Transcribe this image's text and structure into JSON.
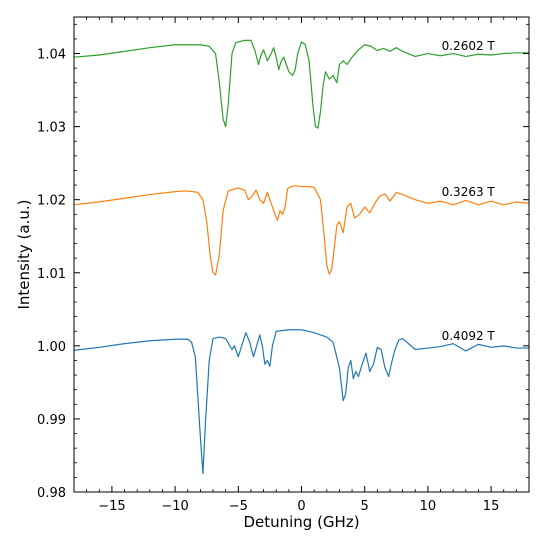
{
  "chart_data": {
    "type": "line",
    "title": "",
    "xlabel": "Detuning (GHz)",
    "ylabel": "Intensity (a.u.)",
    "xlim": [
      -18,
      18
    ],
    "ylim": [
      0.98,
      1.045
    ],
    "xticks": [
      -15,
      -10,
      -5,
      0,
      5,
      10,
      15
    ],
    "xtick_labels": [
      "−15",
      "−10",
      "−5",
      "0",
      "5",
      "10",
      "15"
    ],
    "yticks": [
      0.98,
      0.99,
      1.0,
      1.01,
      1.02,
      1.03,
      1.04
    ],
    "ytick_labels": [
      "0.98",
      "0.99",
      "1.00",
      "1.01",
      "1.02",
      "1.03",
      "1.04"
    ],
    "grid": false,
    "legend": "none",
    "series": [
      {
        "name": "0.2602 T",
        "color": "#2ca02c",
        "x": [
          -18,
          -16,
          -14,
          -12,
          -10,
          -8,
          -7.3,
          -6.8,
          -6.5,
          -6.2,
          -6.0,
          -5.8,
          -5.5,
          -5.2,
          -4.5,
          -4.0,
          -3.7,
          -3.4,
          -3.2,
          -3.0,
          -2.7,
          -2.4,
          -2.2,
          -2.0,
          -1.8,
          -1.6,
          -1.4,
          -1.2,
          -1.0,
          -0.7,
          -0.5,
          -0.3,
          0.0,
          0.3,
          0.6,
          0.9,
          1.1,
          1.3,
          1.5,
          1.7,
          1.9,
          2.2,
          2.5,
          2.8,
          3.0,
          3.3,
          3.6,
          4.0,
          4.5,
          5.0,
          5.5,
          6.0,
          6.5,
          7.0,
          7.5,
          8.0,
          9.0,
          10.0,
          11.0,
          12.0,
          13.0,
          14.0,
          15.0,
          16.0,
          17.0,
          18.0
        ],
        "y": [
          1.0395,
          1.0398,
          1.0403,
          1.0408,
          1.0412,
          1.0412,
          1.041,
          1.04,
          1.036,
          1.031,
          1.03,
          1.033,
          1.04,
          1.0415,
          1.0418,
          1.0418,
          1.0405,
          1.0385,
          1.0398,
          1.0405,
          1.039,
          1.04,
          1.0408,
          1.0395,
          1.0378,
          1.039,
          1.0395,
          1.0385,
          1.0375,
          1.037,
          1.0378,
          1.04,
          1.0416,
          1.0412,
          1.039,
          1.033,
          1.03,
          1.0298,
          1.032,
          1.0355,
          1.0375,
          1.0365,
          1.037,
          1.036,
          1.0385,
          1.039,
          1.0385,
          1.0395,
          1.0405,
          1.0412,
          1.041,
          1.0404,
          1.0407,
          1.0403,
          1.0408,
          1.0403,
          1.0396,
          1.04,
          1.0397,
          1.04,
          1.0396,
          1.0399,
          1.0398,
          1.04,
          1.0401,
          1.0401
        ]
      },
      {
        "name": "0.3263 T",
        "color": "#ff7f0e",
        "x": [
          -18,
          -16,
          -14,
          -12,
          -10,
          -9,
          -8.2,
          -7.8,
          -7.5,
          -7.2,
          -7.0,
          -6.8,
          -6.5,
          -6.2,
          -5.8,
          -5.0,
          -4.5,
          -4.2,
          -3.9,
          -3.6,
          -3.3,
          -3.0,
          -2.7,
          -2.4,
          -2.1,
          -1.9,
          -1.7,
          -1.5,
          -1.3,
          -1.1,
          -0.8,
          -0.5,
          0.0,
          0.5,
          1.0,
          1.5,
          1.8,
          2.0,
          2.2,
          2.4,
          2.6,
          2.8,
          3.0,
          3.3,
          3.6,
          3.9,
          4.2,
          4.6,
          5.0,
          5.4,
          5.8,
          6.2,
          6.6,
          7.0,
          7.5,
          8.0,
          9.0,
          10.0,
          11.0,
          12.0,
          13.0,
          14.0,
          15.0,
          16.0,
          17.0,
          18.0
        ],
        "y": [
          1.0193,
          1.0197,
          1.0202,
          1.0207,
          1.0211,
          1.0212,
          1.021,
          1.02,
          1.017,
          1.012,
          1.01,
          1.0097,
          1.0125,
          1.0185,
          1.0212,
          1.0216,
          1.0213,
          1.02,
          1.0205,
          1.0213,
          1.02,
          1.0195,
          1.021,
          1.0195,
          1.018,
          1.0172,
          1.0185,
          1.018,
          1.019,
          1.0215,
          1.0218,
          1.0219,
          1.0218,
          1.0218,
          1.0217,
          1.02,
          1.015,
          1.011,
          1.0098,
          1.0105,
          1.0135,
          1.0165,
          1.017,
          1.0155,
          1.019,
          1.0195,
          1.0175,
          1.018,
          1.019,
          1.0182,
          1.0195,
          1.0205,
          1.0208,
          1.0198,
          1.021,
          1.0207,
          1.02,
          1.0195,
          1.0198,
          1.0193,
          1.0199,
          1.0193,
          1.0198,
          1.0193,
          1.0197,
          1.0195
        ]
      },
      {
        "name": "0.4092 T",
        "color": "#1f77b4",
        "x": [
          -18,
          -16,
          -14,
          -12,
          -10,
          -9,
          -8.7,
          -8.4,
          -8.2,
          -8.0,
          -7.8,
          -7.6,
          -7.3,
          -7.0,
          -6.5,
          -6.0,
          -5.5,
          -5.3,
          -5.0,
          -4.7,
          -4.4,
          -4.1,
          -3.8,
          -3.5,
          -3.3,
          -3.1,
          -2.9,
          -2.7,
          -2.5,
          -2.3,
          -2.0,
          -1.0,
          0.0,
          1.0,
          2.0,
          2.5,
          3.0,
          3.3,
          3.5,
          3.7,
          3.9,
          4.1,
          4.3,
          4.5,
          4.8,
          5.1,
          5.4,
          5.7,
          6.0,
          6.3,
          6.6,
          6.9,
          7.1,
          7.4,
          7.7,
          8.0,
          9.0,
          10.0,
          11.0,
          12.0,
          13.0,
          14.0,
          15.0,
          16.0,
          17.0,
          18.0
        ],
        "y": [
          0.9994,
          0.9998,
          1.0003,
          1.0007,
          1.0009,
          1.0009,
          1.0005,
          0.9985,
          0.993,
          0.9875,
          0.9825,
          0.9895,
          0.998,
          1.001,
          1.0012,
          1.001,
          0.9995,
          1.0,
          0.9985,
          1.0002,
          1.0018,
          1.0005,
          0.9985,
          1.0003,
          1.0015,
          1.0,
          0.9975,
          0.998,
          0.9972,
          1.0,
          1.002,
          1.0022,
          1.0022,
          1.0018,
          1.0012,
          1.0005,
          0.997,
          0.9925,
          0.9935,
          0.997,
          0.998,
          0.9955,
          0.9965,
          0.9958,
          0.9975,
          0.999,
          0.9965,
          0.9975,
          0.9998,
          0.9995,
          0.997,
          0.9958,
          0.9975,
          0.9995,
          1.0008,
          1.001,
          0.9995,
          0.9997,
          0.9999,
          1.0003,
          0.9993,
          1.0002,
          0.9998,
          1.0,
          0.9997,
          0.9997
        ]
      }
    ],
    "annotations": [
      {
        "text": "0.2602 T",
        "x": 14.5,
        "y": 1.0405,
        "series": 0
      },
      {
        "text": "0.3263 T",
        "x": 14.5,
        "y": 1.0205,
        "series": 1
      },
      {
        "text": "0.4092 T",
        "x": 14.5,
        "y": 1.0008,
        "series": 2
      }
    ]
  }
}
